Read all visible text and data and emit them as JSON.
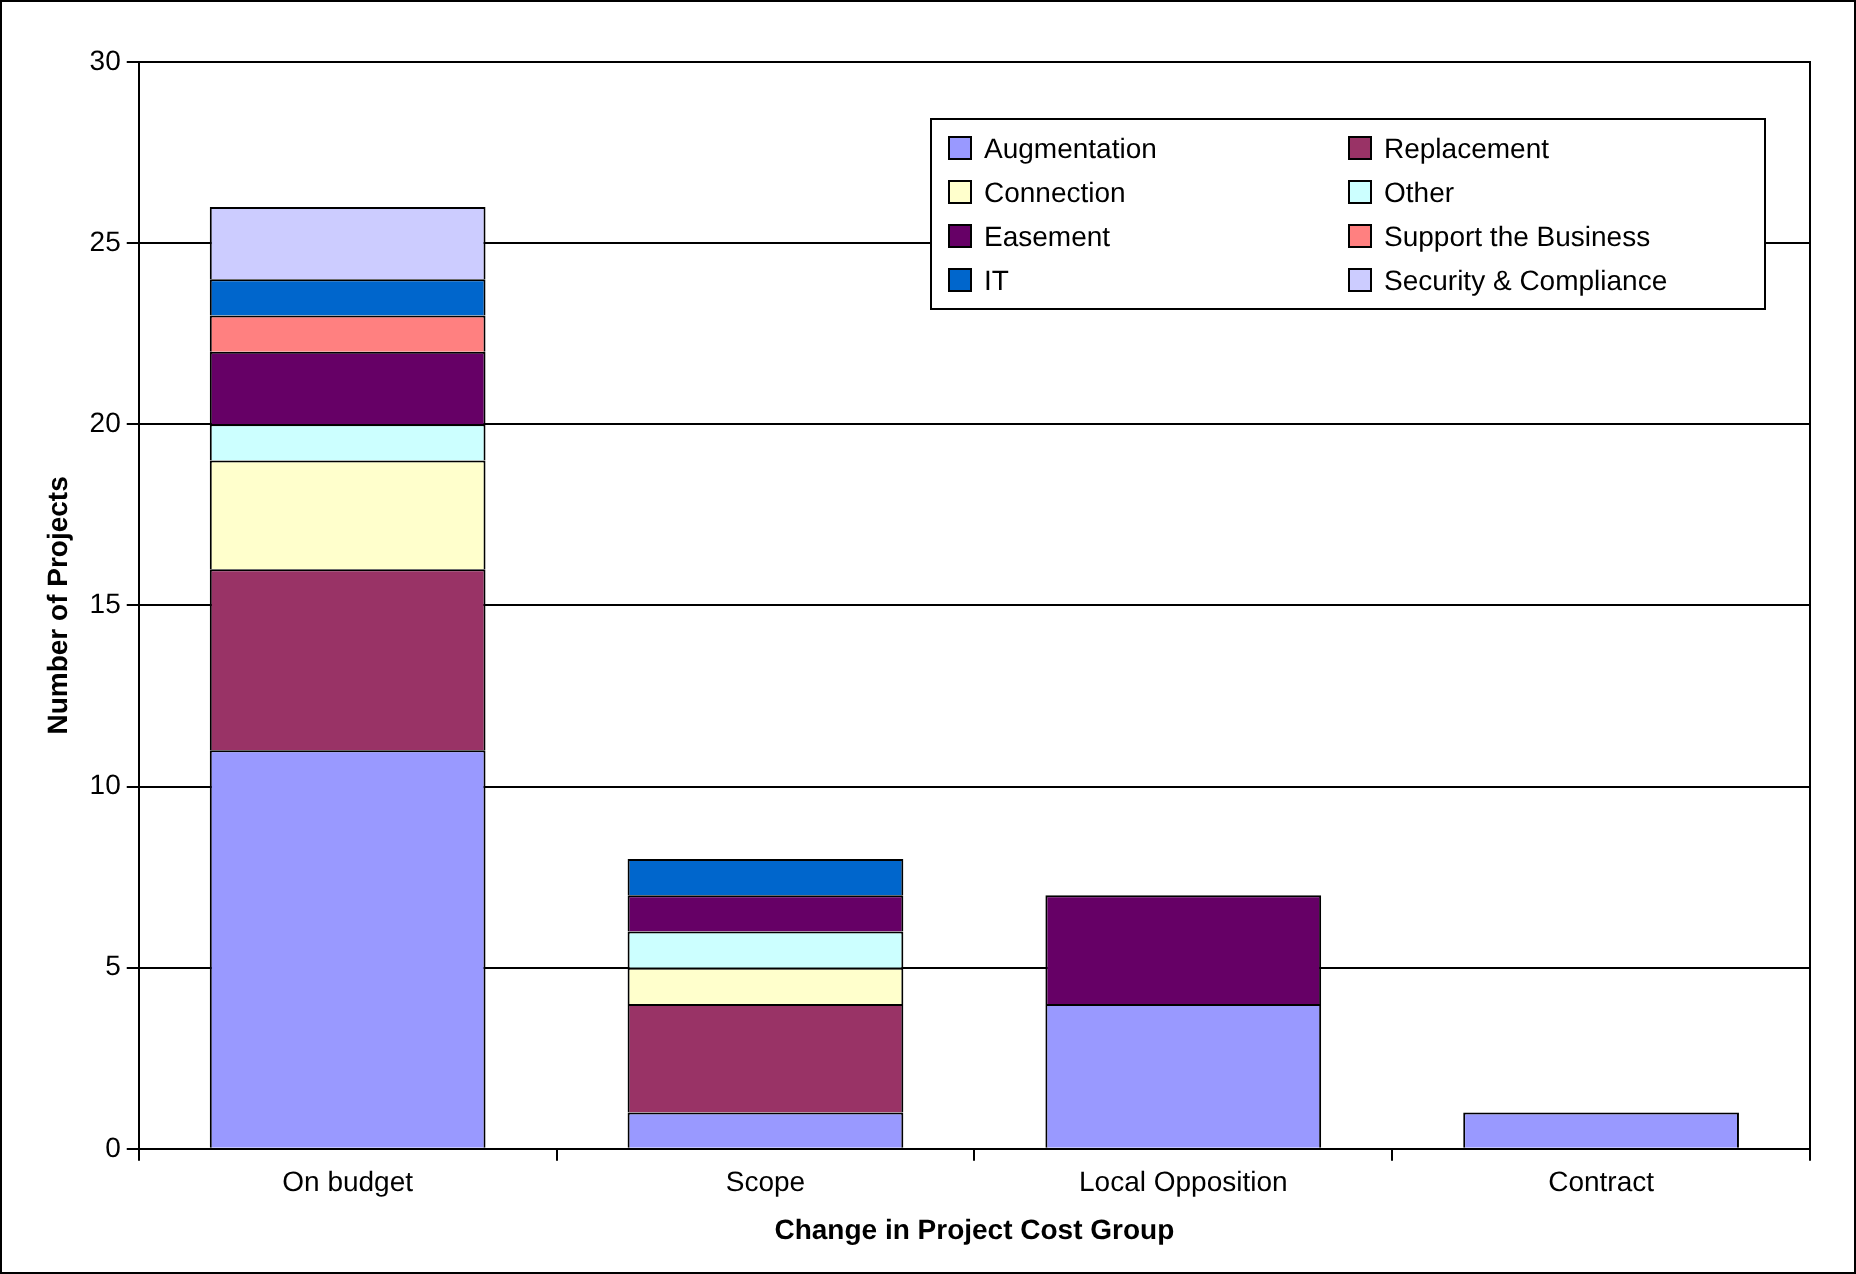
{
  "chart_data": {
    "type": "bar",
    "stacked": true,
    "xlabel": "Change in Project Cost Group",
    "ylabel": "Number of Projects",
    "categories": [
      "On budget",
      "Scope",
      "Local Opposition",
      "Contract"
    ],
    "ylim": [
      0,
      30
    ],
    "yticks": [
      0,
      5,
      10,
      15,
      20,
      25,
      30
    ],
    "grid": "y",
    "legend": "top right",
    "series": [
      {
        "name": "Augmentation",
        "color": "#9999ff",
        "values": [
          11,
          1,
          4,
          1
        ]
      },
      {
        "name": "Replacement",
        "color": "#993366",
        "values": [
          5,
          3,
          0,
          0
        ]
      },
      {
        "name": "Connection",
        "color": "#ffffcc",
        "values": [
          3,
          1,
          0,
          0
        ]
      },
      {
        "name": "Other",
        "color": "#ccffff",
        "values": [
          1,
          1,
          0,
          0
        ]
      },
      {
        "name": "Easement",
        "color": "#660066",
        "values": [
          2,
          1,
          3,
          0
        ]
      },
      {
        "name": "Support the Business",
        "color": "#ff8080",
        "values": [
          1,
          0,
          0,
          0
        ]
      },
      {
        "name": "IT",
        "color": "#0066cc",
        "values": [
          1,
          1,
          0,
          0
        ]
      },
      {
        "name": "Security & Compliance",
        "color": "#ccccff",
        "values": [
          2,
          0,
          0,
          0
        ]
      }
    ]
  }
}
